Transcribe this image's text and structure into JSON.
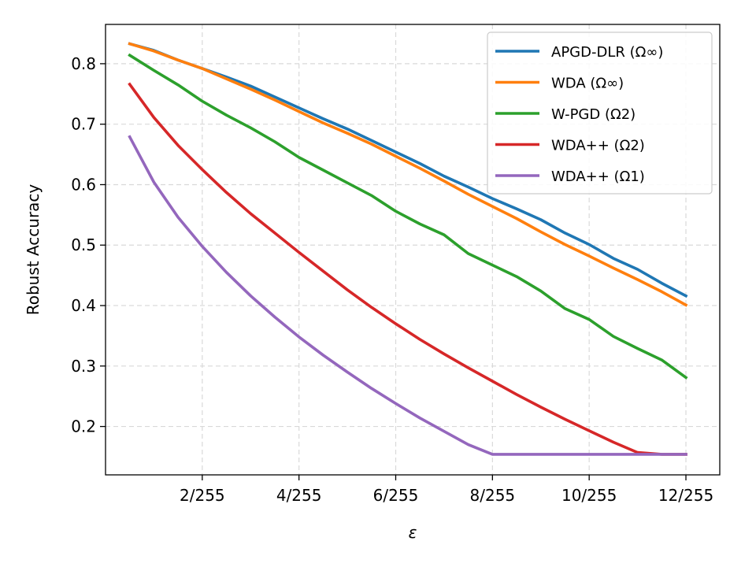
{
  "chart_data": {
    "type": "line",
    "xlabel": "ε",
    "ylabel": "Robust Accuracy",
    "xlim": [
      0,
      12.7
    ],
    "ylim": [
      0.12,
      0.865
    ],
    "xticks": [
      {
        "value": 2,
        "label": "2/255"
      },
      {
        "value": 4,
        "label": "4/255"
      },
      {
        "value": 6,
        "label": "6/255"
      },
      {
        "value": 8,
        "label": "8/255"
      },
      {
        "value": 10,
        "label": "10/255"
      },
      {
        "value": 12,
        "label": "12/255"
      }
    ],
    "yticks": [
      {
        "value": 0.2,
        "label": "0.2"
      },
      {
        "value": 0.3,
        "label": "0.3"
      },
      {
        "value": 0.4,
        "label": "0.4"
      },
      {
        "value": 0.5,
        "label": "0.5"
      },
      {
        "value": 0.6,
        "label": "0.6"
      },
      {
        "value": 0.7,
        "label": "0.7"
      },
      {
        "value": 0.8,
        "label": "0.8"
      }
    ],
    "grid": true,
    "legend_position": "top-right",
    "x": [
      0.5,
      1,
      1.5,
      2,
      2.5,
      3,
      3.5,
      4,
      4.5,
      5,
      5.5,
      6,
      6.5,
      7,
      7.5,
      8,
      8.5,
      9,
      9.5,
      10,
      10.5,
      11,
      11.5,
      12
    ],
    "series": [
      {
        "name": "APGD-DLR (Ω∞)",
        "color": "#1f77b4",
        "values": [
          0.833,
          0.822,
          0.806,
          0.792,
          0.778,
          0.763,
          0.745,
          0.727,
          0.709,
          0.692,
          0.673,
          0.654,
          0.635,
          0.614,
          0.596,
          0.577,
          0.56,
          0.542,
          0.52,
          0.501,
          0.478,
          0.46,
          0.437,
          0.416
        ]
      },
      {
        "name": "WDA (Ω∞)",
        "color": "#ff7f0e",
        "values": [
          0.833,
          0.821,
          0.806,
          0.792,
          0.775,
          0.758,
          0.74,
          0.721,
          0.702,
          0.685,
          0.667,
          0.647,
          0.627,
          0.606,
          0.584,
          0.564,
          0.544,
          0.522,
          0.501,
          0.482,
          0.462,
          0.443,
          0.423,
          0.401
        ]
      },
      {
        "name": "W-PGD (Ω2)",
        "color": "#2ca02c",
        "values": [
          0.814,
          0.789,
          0.765,
          0.738,
          0.715,
          0.694,
          0.671,
          0.645,
          0.624,
          0.603,
          0.582,
          0.556,
          0.535,
          0.517,
          0.486,
          0.467,
          0.448,
          0.424,
          0.395,
          0.377,
          0.349,
          0.329,
          0.31,
          0.281
        ]
      },
      {
        "name": "WDA++ (Ω2)",
        "color": "#d62728",
        "values": [
          0.766,
          0.711,
          0.665,
          0.625,
          0.587,
          0.552,
          0.52,
          0.488,
          0.457,
          0.426,
          0.397,
          0.37,
          0.344,
          0.32,
          0.297,
          0.275,
          0.253,
          0.232,
          0.212,
          0.193,
          0.174,
          0.157,
          0.154,
          0.154
        ]
      },
      {
        "name": "WDA++ (Ω1)",
        "color": "#9467bd",
        "values": [
          0.679,
          0.604,
          0.546,
          0.498,
          0.455,
          0.416,
          0.381,
          0.348,
          0.318,
          0.29,
          0.263,
          0.238,
          0.214,
          0.192,
          0.17,
          0.154,
          0.154,
          0.154,
          0.154,
          0.154,
          0.154,
          0.154,
          0.154,
          0.154
        ]
      }
    ]
  }
}
